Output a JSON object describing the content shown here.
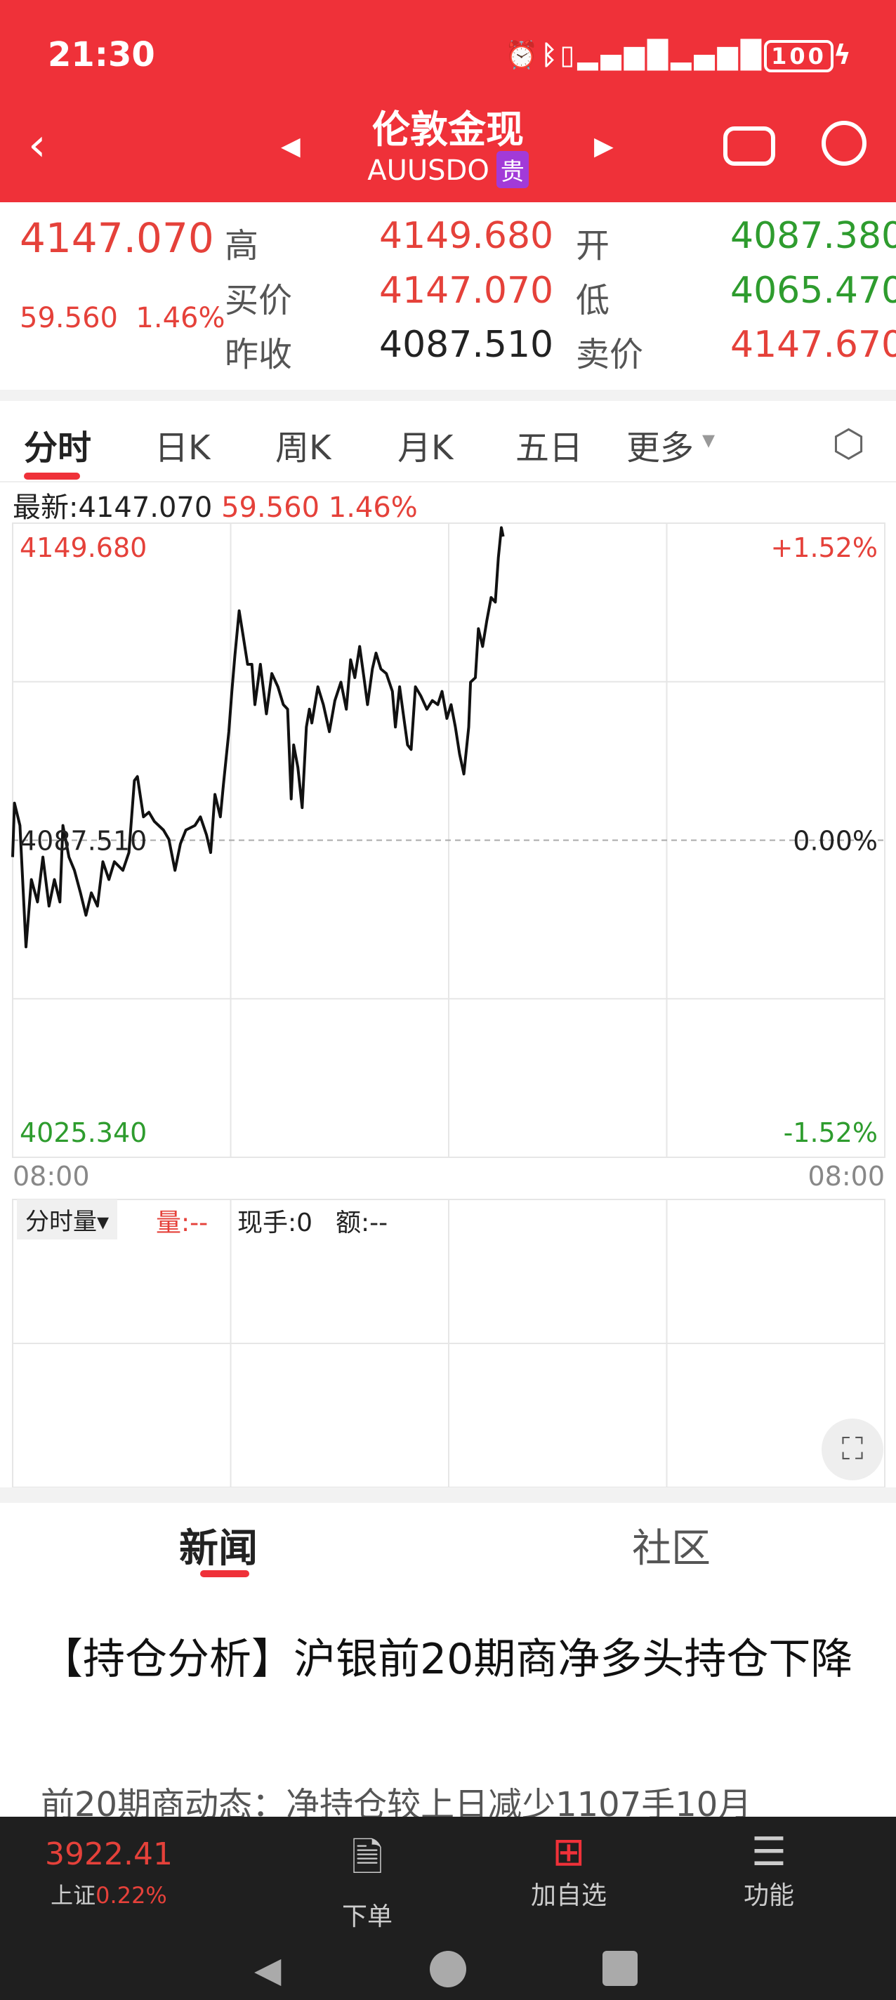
{
  "status_bar": {
    "time": "21:30",
    "icons": [
      "alarm-icon",
      "bluetooth-icon",
      "vibrate-icon",
      "signal-icon",
      "signal-icon",
      "battery-icon",
      "charging-icon"
    ],
    "battery": "100"
  },
  "header": {
    "title": "伦敦金现",
    "symbol": "AUUSDO",
    "tag": "贵",
    "back_icon": "back-icon",
    "prev_icon": "prev-icon",
    "next_icon": "next-icon",
    "robot_icon": "robot-icon",
    "search_icon": "search-icon"
  },
  "quote": {
    "price": "4147.070",
    "change": "59.560",
    "change_pct": "1.46%",
    "fields": [
      {
        "label": "高",
        "value": "4149.680",
        "color": "red"
      },
      {
        "label": "开",
        "value": "4087.380",
        "color": "green"
      },
      {
        "label": "买价",
        "value": "4147.070",
        "color": "red"
      },
      {
        "label": "低",
        "value": "4065.470",
        "color": "green"
      },
      {
        "label": "昨收",
        "value": "4087.510",
        "color": "blk"
      },
      {
        "label": "卖价",
        "value": "4147.670",
        "color": "red"
      }
    ]
  },
  "chart_tabs": [
    {
      "label": "分时",
      "active": true
    },
    {
      "label": "日K"
    },
    {
      "label": "周K"
    },
    {
      "label": "月K"
    },
    {
      "label": "五日"
    },
    {
      "label": "更多"
    }
  ],
  "settings_icon": "hexagon-settings-icon",
  "latest": {
    "label": "最新:4147.070",
    "change": "59.560 1.46%"
  },
  "chart_data": {
    "type": "line",
    "ylim": [
      4025.34,
      4149.68
    ],
    "y_left_ticks": [
      "4149.680",
      "4087.510",
      "4025.340"
    ],
    "y_right_ticks": [
      "+1.52%",
      "0.00%",
      "-1.52%"
    ],
    "x_ticks": [
      "08:00",
      "08:00"
    ],
    "baseline": 4087.51,
    "grid": true,
    "points": [
      [
        "08:00",
        4084.2
      ],
      [
        "08:03",
        4094.8
      ],
      [
        "08:12",
        4090.4
      ],
      [
        "08:22",
        4066.6
      ],
      [
        "08:31",
        4079.8
      ],
      [
        "08:41",
        4075.4
      ],
      [
        "08:50",
        4084.2
      ],
      [
        "09:00",
        4074.6
      ],
      [
        "09:09",
        4079.8
      ],
      [
        "09:18",
        4075.4
      ],
      [
        "09:23",
        4090.4
      ],
      [
        "09:33",
        4084.2
      ],
      [
        "09:42",
        4081.6
      ],
      [
        "09:52",
        4077.2
      ],
      [
        "10:01",
        4072.8
      ],
      [
        "10:10",
        4077.2
      ],
      [
        "10:20",
        4074.6
      ],
      [
        "10:29",
        4083.3
      ],
      [
        "10:39",
        4079.8
      ],
      [
        "10:48",
        4083.3
      ],
      [
        "11:02",
        4081.6
      ],
      [
        "11:12",
        4085.1
      ],
      [
        "11:21",
        4099.2
      ],
      [
        "11:26",
        4100.0
      ],
      [
        "11:36",
        4092.1
      ],
      [
        "11:45",
        4093.0
      ],
      [
        "11:54",
        4091.2
      ],
      [
        "12:09",
        4089.5
      ],
      [
        "12:18",
        4087.7
      ],
      [
        "12:28",
        4081.6
      ],
      [
        "12:37",
        4086.8
      ],
      [
        "12:46",
        4089.5
      ],
      [
        "13:01",
        4090.4
      ],
      [
        "13:10",
        4092.1
      ],
      [
        "13:20",
        4088.6
      ],
      [
        "13:27",
        4085.1
      ],
      [
        "13:34",
        4096.5
      ],
      [
        "13:43",
        4092.1
      ],
      [
        "13:48",
        4098.3
      ],
      [
        "13:57",
        4108.8
      ],
      [
        "14:02",
        4116.7
      ],
      [
        "14:07",
        4123.7
      ],
      [
        "14:14",
        4132.5
      ],
      [
        "14:21",
        4127.3
      ],
      [
        "14:28",
        4122.0
      ],
      [
        "14:35",
        4122.0
      ],
      [
        "14:40",
        4114.1
      ],
      [
        "14:49",
        4122.0
      ],
      [
        "14:59",
        4112.3
      ],
      [
        "15:08",
        4120.2
      ],
      [
        "15:18",
        4117.6
      ],
      [
        "15:27",
        4114.1
      ],
      [
        "15:34",
        4113.2
      ],
      [
        "15:40",
        4095.6
      ],
      [
        "15:44",
        4106.2
      ],
      [
        "15:51",
        4101.8
      ],
      [
        "15:58",
        4093.9
      ],
      [
        "16:05",
        4109.7
      ],
      [
        "16:10",
        4113.2
      ],
      [
        "16:14",
        4110.5
      ],
      [
        "16:24",
        4117.6
      ],
      [
        "16:33",
        4114.1
      ],
      [
        "16:43",
        4108.8
      ],
      [
        "16:52",
        4114.9
      ],
      [
        "17:02",
        4118.5
      ],
      [
        "17:11",
        4113.2
      ],
      [
        "17:18",
        4122.9
      ],
      [
        "17:25",
        4119.4
      ],
      [
        "17:33",
        4125.5
      ],
      [
        "17:40",
        4119.4
      ],
      [
        "17:46",
        4114.1
      ],
      [
        "17:54",
        4121.1
      ],
      [
        "18:00",
        4124.2
      ],
      [
        "18:08",
        4121.1
      ],
      [
        "18:17",
        4120.2
      ],
      [
        "18:27",
        4116.7
      ],
      [
        "18:32",
        4109.7
      ],
      [
        "18:39",
        4117.6
      ],
      [
        "18:46",
        4111.4
      ],
      [
        "18:52",
        4106.2
      ],
      [
        "18:58",
        4105.3
      ],
      [
        "19:05",
        4117.6
      ],
      [
        "19:14",
        4115.8
      ],
      [
        "19:24",
        4113.2
      ],
      [
        "19:33",
        4114.9
      ],
      [
        "19:42",
        4114.1
      ],
      [
        "19:49",
        4116.7
      ],
      [
        "19:57",
        4111.4
      ],
      [
        "20:04",
        4114.1
      ],
      [
        "20:11",
        4109.7
      ],
      [
        "20:18",
        4104.4
      ],
      [
        "20:25",
        4100.5
      ],
      [
        "20:33",
        4109.7
      ],
      [
        "20:36",
        4118.5
      ],
      [
        "20:44",
        4119.4
      ],
      [
        "20:49",
        4129.0
      ],
      [
        "20:56",
        4125.5
      ],
      [
        "21:03",
        4130.6
      ],
      [
        "21:10",
        4135.1
      ],
      [
        "21:17",
        4134.2
      ],
      [
        "21:22",
        4142.9
      ],
      [
        "21:27",
        4148.8
      ],
      [
        "21:30",
        4147.07
      ]
    ]
  },
  "volume": {
    "selector": "分时量▾",
    "vol": "量:--",
    "hand": "现手:0",
    "amount": "额:--"
  },
  "fullscreen_icon": "fullscreen-icon",
  "news_tabs": [
    {
      "label": "新闻",
      "active": true
    },
    {
      "label": "社区"
    }
  ],
  "news": {
    "title": "【持仓分析】沪银前20期商净多头持仓下降",
    "summary": "前20期商动态：净持仓较上日减少1107手10月"
  },
  "bottom_nav": {
    "index_value": "3922.41",
    "index_name": "上证",
    "index_pct": "0.22%",
    "items": [
      {
        "label": "下单",
        "icon": "document-icon"
      },
      {
        "label": "加自选",
        "icon": "add-box-icon"
      },
      {
        "label": "功能",
        "icon": "menu-circle-icon"
      }
    ]
  },
  "colors": {
    "header": "#ef3139",
    "up": "#e5413a",
    "down": "#2e9c2e",
    "badge": "#a23ad8"
  }
}
